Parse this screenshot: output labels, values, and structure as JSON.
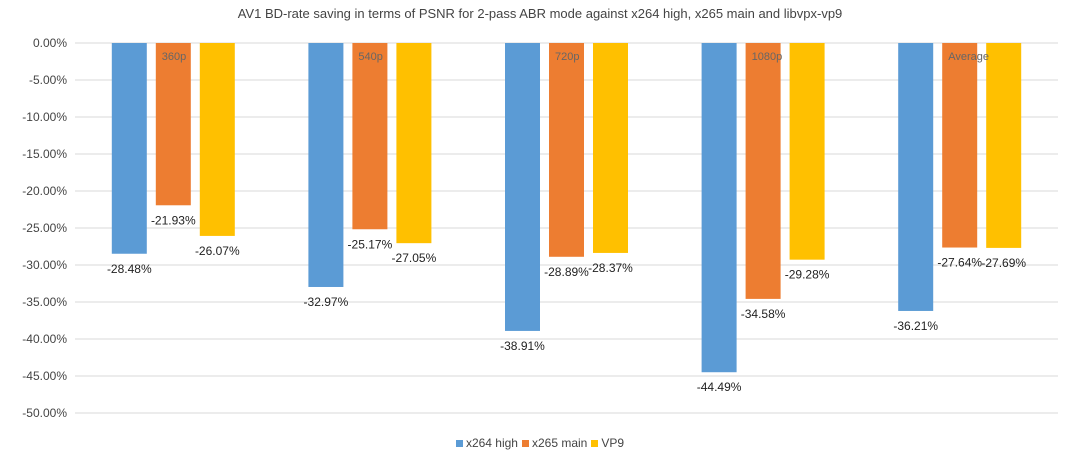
{
  "chart_data": {
    "type": "bar",
    "title": "AV1 BD-rate saving in terms of PSNR for 2-pass ABR mode against x264 high, x265 main and libvpx-vp9",
    "categories": [
      "360p",
      "540p",
      "720p",
      "1080p",
      "Average"
    ],
    "series": [
      {
        "name": "x264 high",
        "color": "#5b9bd5",
        "values": [
          -28.48,
          -32.97,
          -38.91,
          -44.49,
          -36.21
        ]
      },
      {
        "name": "x265 main",
        "color": "#ed7d31",
        "values": [
          -21.93,
          -25.17,
          -28.89,
          -34.58,
          -27.64
        ]
      },
      {
        "name": "VP9",
        "color": "#ffc000",
        "values": [
          -26.07,
          -27.05,
          -28.37,
          -29.28,
          -27.69
        ]
      }
    ],
    "data_labels": [
      [
        "-28.48%",
        "-32.97%",
        "-38.91%",
        "-44.49%",
        "-36.21%"
      ],
      [
        "-21.93%",
        "-25.17%",
        "-28.89%",
        "-34.58%",
        "-27.64%"
      ],
      [
        "-26.07%",
        "-27.05%",
        "-28.37%",
        "-29.28%",
        "-27.69%"
      ]
    ],
    "ylim": [
      -50,
      0
    ],
    "y_ticks": [
      0,
      -5,
      -10,
      -15,
      -20,
      -25,
      -30,
      -35,
      -40,
      -45,
      -50
    ],
    "y_tick_labels": [
      "0.00%",
      "-5.00%",
      "-10.00%",
      "-15.00%",
      "-20.00%",
      "-25.00%",
      "-30.00%",
      "-35.00%",
      "-40.00%",
      "-45.00%",
      "-50.00%"
    ],
    "grid": true,
    "legend_position": "bottom",
    "xlabel": "",
    "ylabel": ""
  }
}
